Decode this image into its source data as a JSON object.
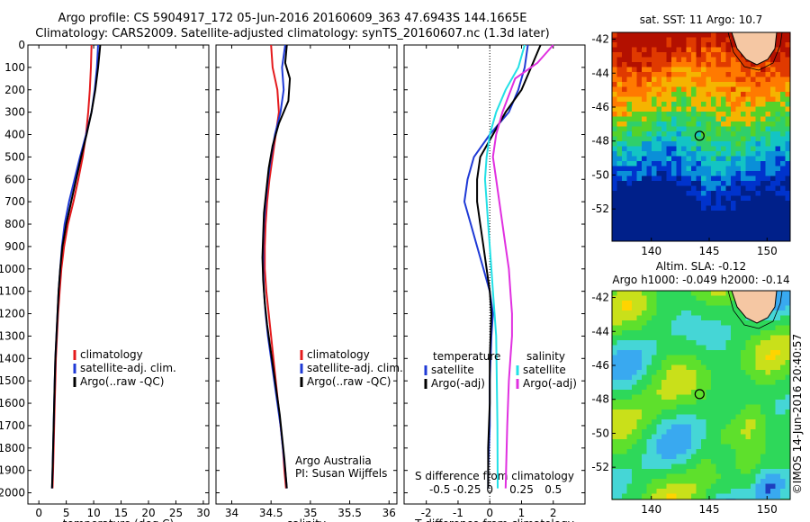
{
  "titles": {
    "line1": "Argo profile: CS 5904917_172 05-Jun-2016 20160609_363 47.6943S 144.1665E",
    "line2": "Climatology: CARS2009. Satellite-adjusted climatology: synTS_20160607.nc (1.3d later)"
  },
  "colors": {
    "climatology": "#e41a1c",
    "satellite": "#1f3ad6",
    "argo": "#000000",
    "satellite_s": "#22e0e6",
    "argo_s": "#e030e0"
  },
  "chart_data": [
    {
      "type": "line",
      "id": "temperature",
      "xlabel": "temperature (deg C)",
      "ylabel": "",
      "xlim": [
        -2,
        31
      ],
      "ylim": [
        2050,
        0
      ],
      "xticks": [
        0,
        5,
        10,
        15,
        20,
        25,
        30
      ],
      "yticks": [
        0,
        100,
        200,
        300,
        400,
        500,
        600,
        700,
        800,
        900,
        1000,
        1100,
        1200,
        1300,
        1400,
        1500,
        1600,
        1700,
        1800,
        1900,
        2000
      ],
      "series": [
        {
          "name": "climatology",
          "points": [
            [
              9.6,
              0
            ],
            [
              9.5,
              100
            ],
            [
              9.3,
              200
            ],
            [
              9.0,
              300
            ],
            [
              8.6,
              400
            ],
            [
              8.0,
              500
            ],
            [
              7.2,
              600
            ],
            [
              6.3,
              700
            ],
            [
              5.3,
              800
            ],
            [
              4.6,
              900
            ],
            [
              4.1,
              1000
            ],
            [
              3.8,
              1100
            ],
            [
              3.5,
              1200
            ],
            [
              3.3,
              1300
            ],
            [
              3.1,
              1400
            ],
            [
              3.0,
              1500
            ],
            [
              2.9,
              1600
            ],
            [
              2.8,
              1700
            ],
            [
              2.7,
              1800
            ],
            [
              2.6,
              1900
            ],
            [
              2.5,
              1980
            ]
          ]
        },
        {
          "name": "satellite-adj. clim.",
          "points": [
            [
              10.8,
              0
            ],
            [
              10.6,
              100
            ],
            [
              10.2,
              200
            ],
            [
              9.6,
              300
            ],
            [
              8.6,
              400
            ],
            [
              7.5,
              500
            ],
            [
              6.5,
              600
            ],
            [
              5.5,
              700
            ],
            [
              4.7,
              800
            ],
            [
              4.2,
              900
            ],
            [
              3.9,
              1000
            ],
            [
              3.6,
              1100
            ],
            [
              3.4,
              1200
            ],
            [
              3.2,
              1300
            ],
            [
              3.0,
              1400
            ],
            [
              2.9,
              1500
            ],
            [
              2.8,
              1600
            ],
            [
              2.7,
              1700
            ],
            [
              2.6,
              1800
            ],
            [
              2.5,
              1900
            ],
            [
              2.4,
              1980
            ]
          ]
        },
        {
          "name": "Argo(..raw -QC)",
          "points": [
            [
              11.2,
              0
            ],
            [
              10.8,
              100
            ],
            [
              10.3,
              200
            ],
            [
              9.6,
              300
            ],
            [
              8.7,
              400
            ],
            [
              7.7,
              500
            ],
            [
              6.8,
              600
            ],
            [
              5.9,
              700
            ],
            [
              5.0,
              800
            ],
            [
              4.3,
              900
            ],
            [
              3.9,
              1000
            ],
            [
              3.6,
              1100
            ],
            [
              3.4,
              1200
            ],
            [
              3.2,
              1300
            ],
            [
              3.0,
              1400
            ],
            [
              2.9,
              1500
            ],
            [
              2.8,
              1600
            ],
            [
              2.7,
              1700
            ],
            [
              2.6,
              1800
            ],
            [
              2.5,
              1900
            ],
            [
              2.4,
              1980
            ]
          ]
        }
      ],
      "legend": [
        "climatology",
        "satellite-adj. clim.",
        "Argo(..raw -QC)"
      ]
    },
    {
      "type": "line",
      "id": "salinity",
      "xlabel": "salinity",
      "xlim": [
        33.8,
        36.1
      ],
      "ylim": [
        2050,
        0
      ],
      "xticks": [
        34,
        34.5,
        35,
        35.5,
        36
      ],
      "series": [
        {
          "name": "climatology",
          "points": [
            [
              34.5,
              0
            ],
            [
              34.52,
              100
            ],
            [
              34.58,
              200
            ],
            [
              34.6,
              300
            ],
            [
              34.56,
              400
            ],
            [
              34.52,
              500
            ],
            [
              34.48,
              600
            ],
            [
              34.45,
              700
            ],
            [
              34.43,
              800
            ],
            [
              34.42,
              900
            ],
            [
              34.42,
              1000
            ],
            [
              34.44,
              1100
            ],
            [
              34.47,
              1200
            ],
            [
              34.5,
              1300
            ],
            [
              34.53,
              1400
            ],
            [
              34.56,
              1500
            ],
            [
              34.59,
              1600
            ],
            [
              34.62,
              1700
            ],
            [
              34.65,
              1800
            ],
            [
              34.67,
              1900
            ],
            [
              34.69,
              1980
            ]
          ]
        },
        {
          "name": "satellite-adj. clim.",
          "points": [
            [
              34.68,
              0
            ],
            [
              34.64,
              100
            ],
            [
              34.66,
              200
            ],
            [
              34.62,
              300
            ],
            [
              34.55,
              400
            ],
            [
              34.5,
              500
            ],
            [
              34.46,
              600
            ],
            [
              34.43,
              700
            ],
            [
              34.41,
              800
            ],
            [
              34.4,
              900
            ],
            [
              34.4,
              1000
            ],
            [
              34.41,
              1100
            ],
            [
              34.43,
              1200
            ],
            [
              34.46,
              1300
            ],
            [
              34.5,
              1400
            ],
            [
              34.54,
              1500
            ],
            [
              34.58,
              1600
            ],
            [
              34.62,
              1700
            ],
            [
              34.65,
              1800
            ],
            [
              34.68,
              1900
            ],
            [
              34.7,
              1980
            ]
          ]
        },
        {
          "name": "Argo(..raw -QC)",
          "points": [
            [
              34.7,
              0
            ],
            [
              34.68,
              80
            ],
            [
              34.74,
              150
            ],
            [
              34.72,
              250
            ],
            [
              34.6,
              350
            ],
            [
              34.52,
              450
            ],
            [
              34.47,
              550
            ],
            [
              34.44,
              650
            ],
            [
              34.41,
              750
            ],
            [
              34.4,
              850
            ],
            [
              34.39,
              950
            ],
            [
              34.4,
              1050
            ],
            [
              34.42,
              1150
            ],
            [
              34.45,
              1250
            ],
            [
              34.49,
              1350
            ],
            [
              34.53,
              1450
            ],
            [
              34.57,
              1550
            ],
            [
              34.61,
              1650
            ],
            [
              34.64,
              1750
            ],
            [
              34.67,
              1850
            ],
            [
              34.7,
              1980
            ]
          ]
        }
      ],
      "legend": [
        "climatology",
        "satellite-adj. clim.",
        "Argo(..raw -QC)"
      ],
      "annotation": [
        "Argo Australia",
        "PI: Susan Wijffels"
      ]
    },
    {
      "type": "line",
      "id": "differences",
      "xlabel": "T difference from climatology",
      "top_xlabel": "S difference from climatology",
      "xlim": [
        -2.7,
        3.0
      ],
      "ylim": [
        2050,
        0
      ],
      "xticks": [
        -2,
        -1,
        0,
        1,
        2
      ],
      "top_xticks": [
        "-0.5",
        "-0.25",
        "0",
        "0.25",
        "0.5"
      ],
      "series": [
        {
          "name": "temperature satellite",
          "points": [
            [
              1.2,
              0
            ],
            [
              1.1,
              100
            ],
            [
              0.9,
              200
            ],
            [
              0.6,
              300
            ],
            [
              0.0,
              400
            ],
            [
              -0.5,
              500
            ],
            [
              -0.7,
              600
            ],
            [
              -0.8,
              700
            ],
            [
              -0.6,
              800
            ],
            [
              -0.4,
              900
            ],
            [
              -0.2,
              1000
            ],
            [
              0.0,
              1100
            ],
            [
              0.1,
              1200
            ],
            [
              0.05,
              1300
            ],
            [
              0.0,
              1500
            ],
            [
              0.0,
              1700
            ],
            [
              -0.05,
              1900
            ],
            [
              -0.05,
              1980
            ]
          ]
        },
        {
          "name": "temperature Argo(-adj)",
          "points": [
            [
              1.6,
              0
            ],
            [
              1.3,
              100
            ],
            [
              1.0,
              200
            ],
            [
              0.5,
              300
            ],
            [
              0.1,
              400
            ],
            [
              -0.3,
              500
            ],
            [
              -0.4,
              600
            ],
            [
              -0.4,
              700
            ],
            [
              -0.3,
              800
            ],
            [
              -0.2,
              900
            ],
            [
              -0.1,
              1000
            ],
            [
              0.0,
              1100
            ],
            [
              0.05,
              1200
            ],
            [
              0.0,
              1400
            ],
            [
              0.0,
              1600
            ],
            [
              -0.05,
              1800
            ],
            [
              -0.05,
              1980
            ]
          ]
        },
        {
          "name": "salinity satellite",
          "points": [
            [
              1.1,
              0
            ],
            [
              0.9,
              100
            ],
            [
              0.5,
              200
            ],
            [
              0.2,
              300
            ],
            [
              0.0,
              400
            ],
            [
              -0.1,
              500
            ],
            [
              -0.15,
              600
            ],
            [
              -0.1,
              700
            ],
            [
              -0.05,
              800
            ],
            [
              0.0,
              900
            ],
            [
              0.05,
              1000
            ],
            [
              0.1,
              1100
            ],
            [
              0.15,
              1200
            ],
            [
              0.2,
              1300
            ],
            [
              0.22,
              1500
            ],
            [
              0.24,
              1700
            ],
            [
              0.25,
              1980
            ]
          ]
        },
        {
          "name": "salinity Argo(-adj)",
          "points": [
            [
              2.0,
              0
            ],
            [
              1.5,
              80
            ],
            [
              0.8,
              150
            ],
            [
              0.4,
              300
            ],
            [
              0.2,
              400
            ],
            [
              0.1,
              500
            ],
            [
              0.2,
              600
            ],
            [
              0.3,
              700
            ],
            [
              0.4,
              800
            ],
            [
              0.5,
              900
            ],
            [
              0.6,
              1000
            ],
            [
              0.65,
              1100
            ],
            [
              0.7,
              1200
            ],
            [
              0.7,
              1300
            ],
            [
              0.65,
              1400
            ],
            [
              0.6,
              1500
            ],
            [
              0.55,
              1700
            ],
            [
              0.5,
              1980
            ]
          ]
        }
      ],
      "legend_headers": [
        "temperature",
        "salinity"
      ],
      "legend_left": [
        "satellite",
        "Argo(-adj)"
      ],
      "legend_right": [
        "satellite",
        "Argo(-adj)"
      ]
    },
    {
      "type": "heatmap",
      "id": "sst_map",
      "title": "sat. SST: 11 Argo: 10.7",
      "xticks": [
        140,
        145,
        150
      ],
      "yticks": [
        -42,
        -44,
        -46,
        -48,
        -50,
        -52
      ]
    },
    {
      "type": "heatmap",
      "id": "sla_map",
      "title_lines": [
        "Altim. SLA: -0.12",
        "Argo h1000: -0.049 h2000: -0.14"
      ],
      "xticks": [
        140,
        145,
        150
      ],
      "yticks": [
        -42,
        -44,
        -46,
        -48,
        -50,
        -52
      ],
      "side_label": "©IMOS 14-Jun-2016 20:40:57"
    }
  ]
}
